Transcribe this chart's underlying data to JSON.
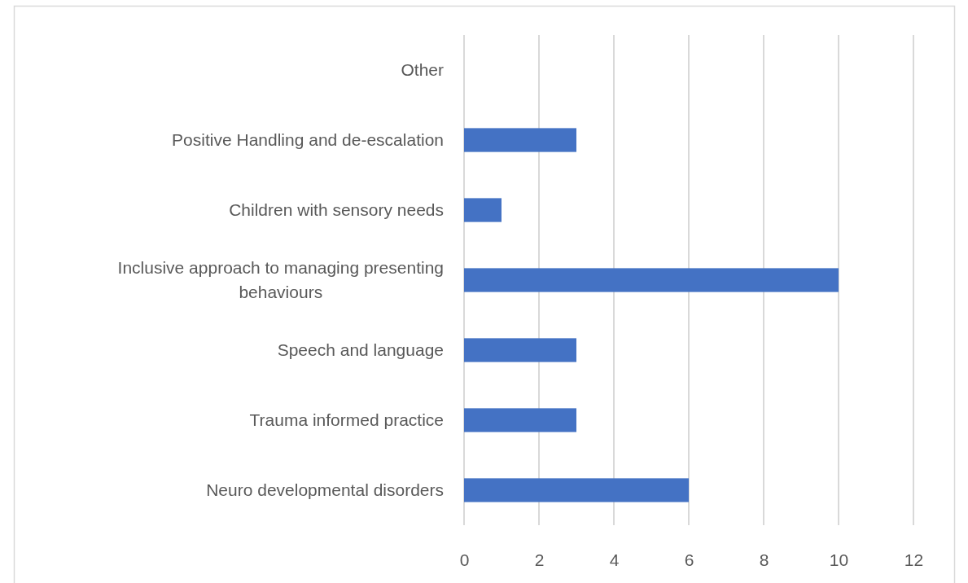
{
  "chart_data": {
    "type": "bar",
    "orientation": "horizontal",
    "categories": [
      "Other",
      "Positive Handling and de-escalation",
      "Children with sensory needs",
      "Inclusive approach to managing presenting behaviours",
      "Speech and language",
      "Trauma informed practice",
      "Neuro developmental disorders"
    ],
    "values": [
      0,
      3,
      1,
      10,
      3,
      3,
      6
    ],
    "color": "#4472c4",
    "xlim": [
      0,
      12
    ],
    "xticks": [
      0,
      2,
      4,
      6,
      8,
      10,
      12
    ],
    "grid": "x"
  }
}
